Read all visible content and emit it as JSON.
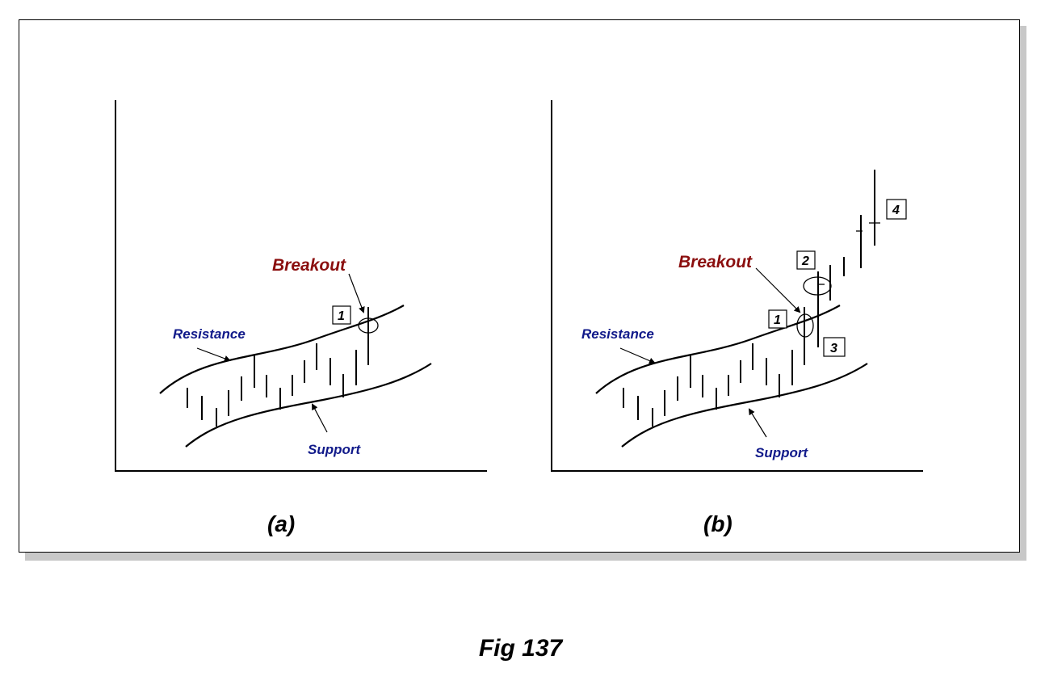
{
  "figure": {
    "caption": "Fig 137"
  },
  "panel_a": {
    "label": "(a)",
    "breakout_label": "Breakout",
    "resistance_label": "Resistance",
    "support_label": "Support",
    "markers": [
      "1"
    ]
  },
  "panel_b": {
    "label": "(b)",
    "breakout_label": "Breakout",
    "resistance_label": "Resistance",
    "support_label": "Support",
    "markers": [
      "1",
      "2",
      "3",
      "4"
    ]
  },
  "colors": {
    "breakout_text": "#8b0f0f",
    "channel_text": "#111a8a",
    "lines": "#000000"
  }
}
